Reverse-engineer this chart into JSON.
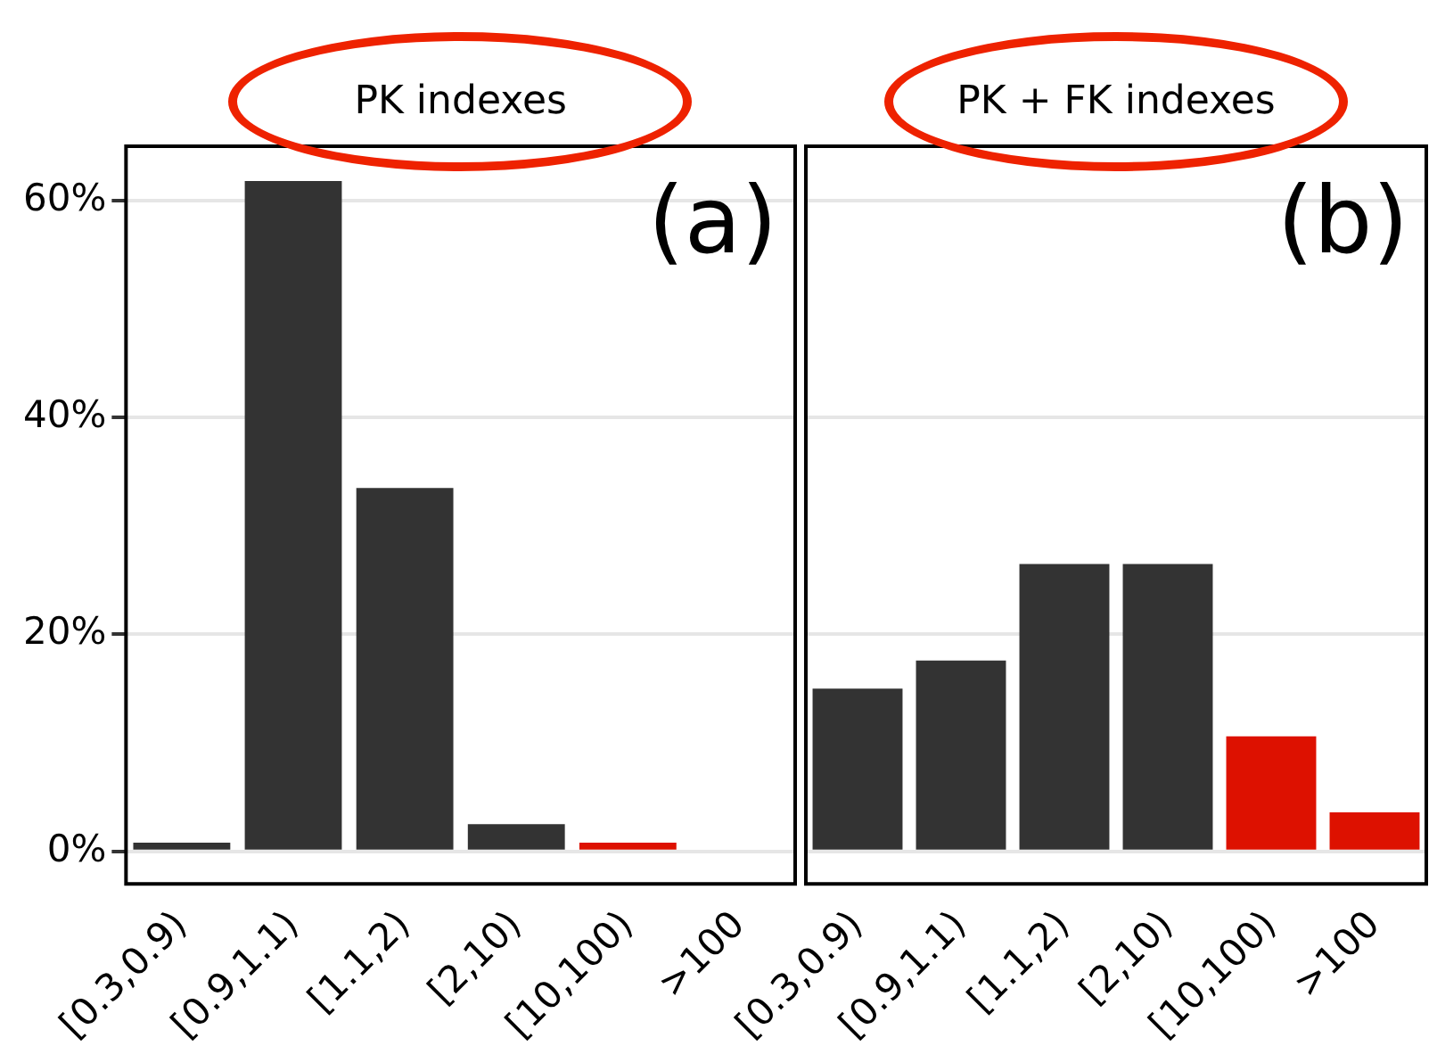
{
  "chart_data": [
    {
      "type": "bar",
      "title": "PK indexes",
      "annotations": [
        "(a)"
      ],
      "categories": [
        "[0.3,0.9)",
        "[0.9,1.1)",
        "[1.1,2)",
        "[2,10)",
        "[10,100)",
        ">100"
      ],
      "values": [
        0.8,
        61.8,
        33.5,
        2.5,
        0.8,
        0
      ],
      "colors": [
        "#333333",
        "#333333",
        "#333333",
        "#333333",
        "#dd1100",
        "#dd1100"
      ],
      "ylim": [
        -3,
        65
      ],
      "yticks": [
        {
          "value": 0,
          "label": "0%"
        },
        {
          "value": 20,
          "label": "20%"
        },
        {
          "value": 40,
          "label": "40%"
        },
        {
          "value": 60,
          "label": "60%"
        }
      ],
      "grid": "y",
      "legend": false
    },
    {
      "type": "bar",
      "title": "PK + FK indexes",
      "annotations": [
        "(b)"
      ],
      "categories": [
        "[0.3,0.9)",
        "[0.9,1.1)",
        "[1.1,2)",
        "[2,10)",
        "[10,100)",
        ">100"
      ],
      "values": [
        15.0,
        17.6,
        26.5,
        26.5,
        10.6,
        3.6
      ],
      "colors": [
        "#333333",
        "#333333",
        "#333333",
        "#333333",
        "#dd1100",
        "#dd1100"
      ],
      "ylim": [
        -3,
        65
      ],
      "yticks": [
        0,
        20,
        40,
        60
      ],
      "grid": "y",
      "legend": false,
      "tick_labels": "x"
    }
  ]
}
